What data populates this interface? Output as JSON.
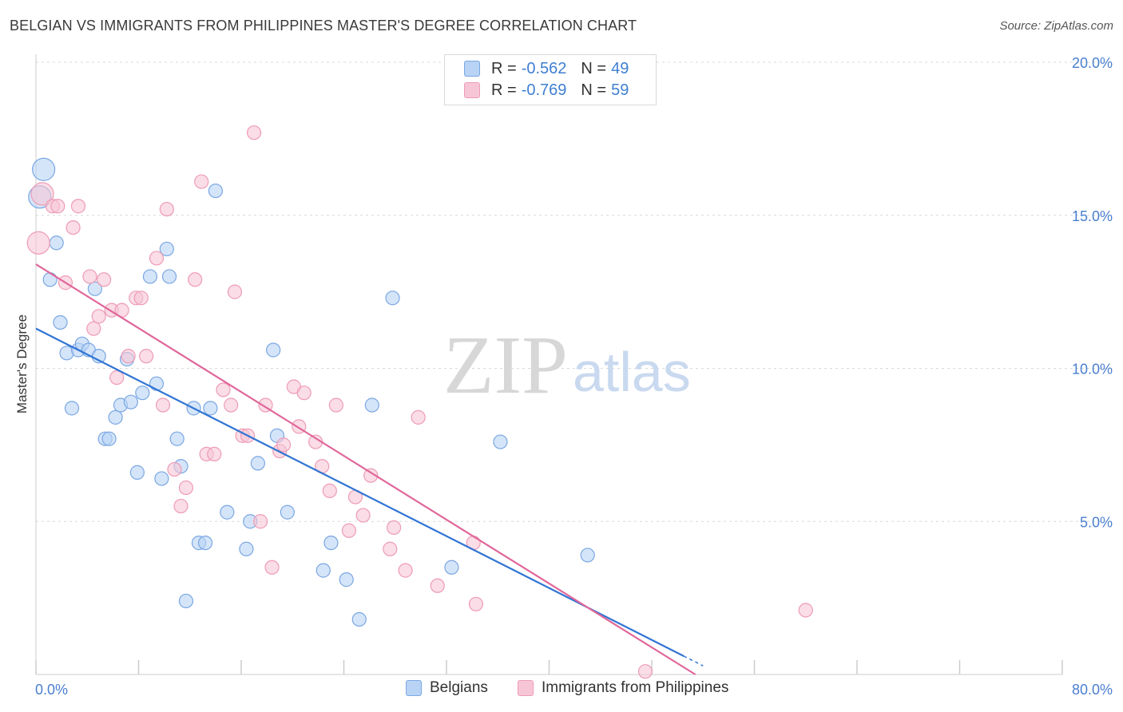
{
  "header": {
    "title": "BELGIAN VS IMMIGRANTS FROM PHILIPPINES MASTER'S DEGREE CORRELATION CHART",
    "source": "Source: ZipAtlas.com"
  },
  "legend": {
    "rows": [
      {
        "r_label": "R = ",
        "r_value": "-0.562",
        "n_label": "N = ",
        "n_value": "49"
      },
      {
        "r_label": "R = ",
        "r_value": "-0.769",
        "n_label": "N = ",
        "n_value": "59"
      }
    ],
    "bottom": [
      "Belgians",
      "Immigrants from Philippines"
    ]
  },
  "watermark": {
    "zip": "ZIP",
    "atlas": "atlas"
  },
  "colors": {
    "blue_fill": "#b9d3f5",
    "blue_stroke": "#7aa7e3",
    "blue_line": "#3175d4",
    "pink_fill": "#f7c6d6",
    "pink_stroke": "#ee9bb6",
    "pink_line": "#e0679a",
    "grid": "#d8d8d8",
    "tick_text": "#4a7fcf"
  },
  "chart_data": {
    "type": "scatter",
    "title": "BELGIAN VS IMMIGRANTS FROM PHILIPPINES MASTER'S DEGREE CORRELATION CHART",
    "xlabel": "",
    "ylabel": "Master's Degree",
    "xlim": [
      0,
      80
    ],
    "ylim": [
      0,
      20
    ],
    "x_tick_labels": [
      "0.0%",
      "80.0%"
    ],
    "y_ticks": [
      5,
      10,
      15,
      20
    ],
    "y_tick_labels": [
      "5.0%",
      "10.0%",
      "15.0%",
      "20.0%"
    ],
    "grid": true,
    "series": [
      {
        "name": "Belgians",
        "r": -0.562,
        "n": 49,
        "trend": {
          "x0": 0,
          "y0": 11.3,
          "x1": 50.5,
          "y1": 0.6,
          "dash_to_x": 52
        },
        "points": [
          [
            0.3,
            15.6
          ],
          [
            0.6,
            16.5
          ],
          [
            1.1,
            12.9
          ],
          [
            1.6,
            14.1
          ],
          [
            1.9,
            11.5
          ],
          [
            2.4,
            10.5
          ],
          [
            2.8,
            8.7
          ],
          [
            3.3,
            10.6
          ],
          [
            3.6,
            10.8
          ],
          [
            4.1,
            10.6
          ],
          [
            4.6,
            12.6
          ],
          [
            4.9,
            10.4
          ],
          [
            5.4,
            7.7
          ],
          [
            5.7,
            7.7
          ],
          [
            6.2,
            8.4
          ],
          [
            6.6,
            8.8
          ],
          [
            7.1,
            10.3
          ],
          [
            7.4,
            8.9
          ],
          [
            7.9,
            6.6
          ],
          [
            8.3,
            9.2
          ],
          [
            8.9,
            13.0
          ],
          [
            9.4,
            9.5
          ],
          [
            9.8,
            6.4
          ],
          [
            10.2,
            13.9
          ],
          [
            10.4,
            13.0
          ],
          [
            11.0,
            7.7
          ],
          [
            11.3,
            6.8
          ],
          [
            11.7,
            2.4
          ],
          [
            12.3,
            8.7
          ],
          [
            12.7,
            4.3
          ],
          [
            13.2,
            4.3
          ],
          [
            13.6,
            8.7
          ],
          [
            14.0,
            15.8
          ],
          [
            14.9,
            5.3
          ],
          [
            16.4,
            4.1
          ],
          [
            16.7,
            5.0
          ],
          [
            17.3,
            6.9
          ],
          [
            18.5,
            10.6
          ],
          [
            18.8,
            7.8
          ],
          [
            19.6,
            5.3
          ],
          [
            22.4,
            3.4
          ],
          [
            23.0,
            4.3
          ],
          [
            24.2,
            3.1
          ],
          [
            25.2,
            1.8
          ],
          [
            26.2,
            8.8
          ],
          [
            27.8,
            12.3
          ],
          [
            32.4,
            3.5
          ],
          [
            36.2,
            7.6
          ],
          [
            43.0,
            3.9
          ]
        ]
      },
      {
        "name": "Immigrants from Philippines",
        "r": -0.769,
        "n": 59,
        "trend": {
          "x0": 0,
          "y0": 13.4,
          "x1": 51.4,
          "y1": 0.0
        },
        "points": [
          [
            0.2,
            14.1
          ],
          [
            0.5,
            15.7
          ],
          [
            1.3,
            15.3
          ],
          [
            1.7,
            15.3
          ],
          [
            2.3,
            12.8
          ],
          [
            2.9,
            14.6
          ],
          [
            3.3,
            15.3
          ],
          [
            4.2,
            13.0
          ],
          [
            4.5,
            11.3
          ],
          [
            4.9,
            11.7
          ],
          [
            5.3,
            12.9
          ],
          [
            5.9,
            11.9
          ],
          [
            6.3,
            9.7
          ],
          [
            6.7,
            11.9
          ],
          [
            7.2,
            10.4
          ],
          [
            7.8,
            12.3
          ],
          [
            8.2,
            12.3
          ],
          [
            8.6,
            10.4
          ],
          [
            9.4,
            13.6
          ],
          [
            9.9,
            8.8
          ],
          [
            10.2,
            15.2
          ],
          [
            10.8,
            6.7
          ],
          [
            11.3,
            5.5
          ],
          [
            11.7,
            6.1
          ],
          [
            12.4,
            12.9
          ],
          [
            12.9,
            16.1
          ],
          [
            13.3,
            7.2
          ],
          [
            13.9,
            7.2
          ],
          [
            14.6,
            9.3
          ],
          [
            15.2,
            8.8
          ],
          [
            15.5,
            12.5
          ],
          [
            16.1,
            7.8
          ],
          [
            16.5,
            7.8
          ],
          [
            17.0,
            17.7
          ],
          [
            17.5,
            5.0
          ],
          [
            17.9,
            8.8
          ],
          [
            18.4,
            3.5
          ],
          [
            19.0,
            7.3
          ],
          [
            19.3,
            7.5
          ],
          [
            20.1,
            9.4
          ],
          [
            20.5,
            8.1
          ],
          [
            20.9,
            9.2
          ],
          [
            21.8,
            7.6
          ],
          [
            22.3,
            6.8
          ],
          [
            22.9,
            6.0
          ],
          [
            23.4,
            8.8
          ],
          [
            24.4,
            4.7
          ],
          [
            24.9,
            5.8
          ],
          [
            25.5,
            5.2
          ],
          [
            26.1,
            6.5
          ],
          [
            27.6,
            4.1
          ],
          [
            27.9,
            4.8
          ],
          [
            28.8,
            3.4
          ],
          [
            29.8,
            8.4
          ],
          [
            31.3,
            2.9
          ],
          [
            34.1,
            4.3
          ],
          [
            34.3,
            2.3
          ],
          [
            47.5,
            0.1
          ],
          [
            60.0,
            2.1
          ]
        ]
      }
    ]
  }
}
